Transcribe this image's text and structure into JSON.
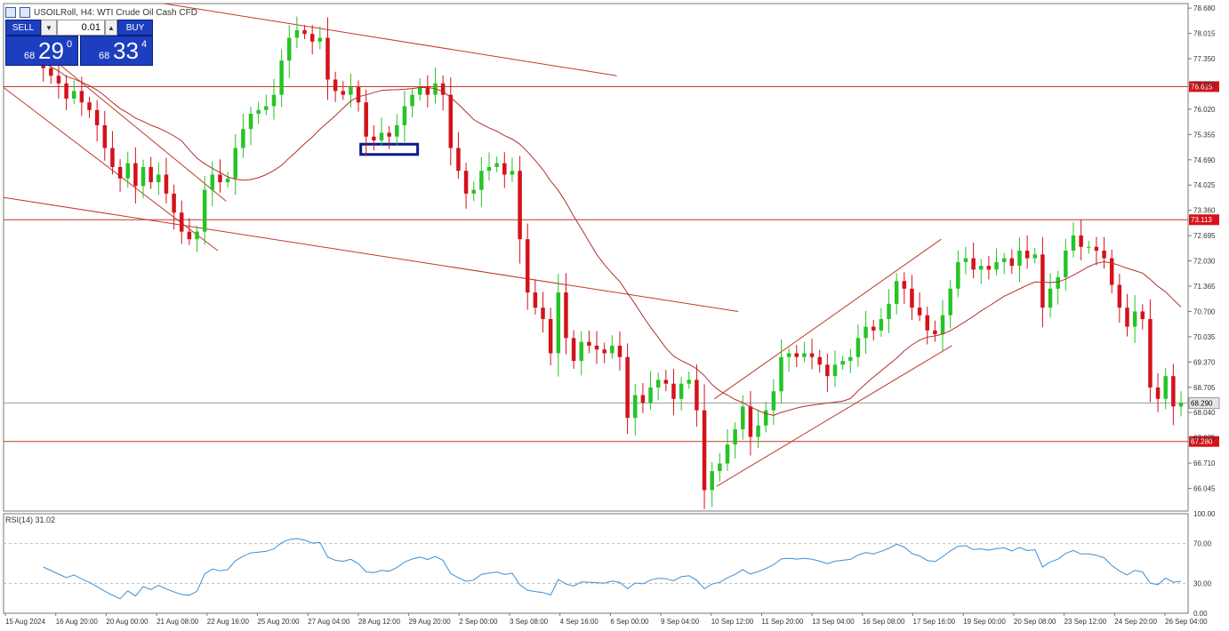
{
  "header": {
    "title": "USOILRoll, H4:  WTI Crude Oil Cash CFD"
  },
  "trade_panel": {
    "sell_label": "SELL",
    "buy_label": "BUY",
    "lot": "0.01",
    "sell_price_prefix": "68",
    "sell_price_big": "29",
    "sell_price_sup": "0",
    "buy_price_prefix": "68",
    "buy_price_big": "33",
    "buy_price_sup": "4"
  },
  "rsi_label": "RSI(14) 31.02",
  "colors": {
    "bull": "#26c426",
    "bear": "#d4121b",
    "ma": "#b3302a",
    "rsi": "#3b8fd6",
    "hline": "#c0392b",
    "current": "#a0a0a0",
    "box": "#0d1a8c"
  },
  "chart_data": {
    "type": "candlestick",
    "symbol": "USOILRoll",
    "timeframe": "H4",
    "ylim": [
      65.45,
      78.8
    ],
    "y_ticks": [
      "78.680",
      "78.015",
      "77.350",
      "76.685",
      "76.020",
      "75.355",
      "74.690",
      "74.025",
      "73.360",
      "72.695",
      "72.030",
      "71.365",
      "70.700",
      "70.035",
      "69.370",
      "68.705",
      "68.040",
      "67.375",
      "66.710",
      "66.045"
    ],
    "x_ticks": [
      "15 Aug 2024",
      "16 Aug 20:00",
      "20 Aug 00:00",
      "21 Aug 08:00",
      "22 Aug 16:00",
      "25 Aug 20:00",
      "27 Aug 04:00",
      "28 Aug 12:00",
      "29 Aug 20:00",
      "2 Sep 00:00",
      "3 Sep 08:00",
      "4 Sep 16:00",
      "6 Sep 00:00",
      "9 Sep 04:00",
      "10 Sep 12:00",
      "11 Sep 20:00",
      "13 Sep 04:00",
      "16 Sep 08:00",
      "17 Sep 16:00",
      "19 Sep 00:00",
      "20 Sep 08:00",
      "23 Sep 12:00",
      "24 Sep 20:00",
      "26 Sep 04:00"
    ],
    "levels": [
      {
        "price": 76.615,
        "label": "76.615"
      },
      {
        "price": 73.113,
        "label": "73.113"
      },
      {
        "price": 67.28,
        "label": "67.280"
      }
    ],
    "current_price": {
      "price": 68.29,
      "label": "68.290"
    },
    "closes": [
      77.4,
      77.1,
      76.9,
      76.7,
      76.3,
      76.5,
      76.2,
      76.0,
      75.6,
      75.0,
      74.5,
      74.2,
      74.6,
      74.0,
      74.5,
      74.1,
      74.3,
      73.8,
      73.3,
      72.8,
      72.6,
      72.8,
      73.9,
      74.3,
      74.1,
      74.2,
      75.0,
      75.5,
      75.9,
      76.0,
      76.1,
      76.4,
      77.3,
      77.9,
      78.1,
      78.0,
      77.8,
      77.9,
      76.8,
      76.5,
      76.4,
      76.6,
      76.2,
      75.3,
      75.2,
      75.4,
      75.3,
      75.6,
      76.1,
      76.4,
      76.6,
      76.4,
      76.7,
      76.4,
      75.0,
      74.4,
      73.8,
      73.9,
      74.4,
      74.5,
      74.6,
      74.3,
      74.4,
      72.6,
      71.2,
      70.8,
      70.5,
      69.6,
      71.2,
      70.0,
      69.4,
      69.9,
      69.8,
      69.7,
      69.6,
      69.8,
      69.5,
      67.9,
      68.5,
      68.3,
      68.7,
      68.9,
      68.8,
      68.4,
      68.8,
      68.9,
      68.1,
      66.0,
      66.5,
      66.7,
      67.2,
      67.6,
      68.2,
      67.4,
      67.7,
      68.1,
      68.6,
      69.5,
      69.6,
      69.5,
      69.6,
      69.5,
      69.3,
      69.0,
      69.3,
      69.4,
      69.5,
      70.0,
      70.3,
      70.2,
      70.5,
      70.9,
      71.5,
      71.3,
      70.8,
      70.6,
      70.2,
      70.1,
      70.6,
      71.3,
      72.0,
      72.1,
      71.8,
      71.9,
      71.8,
      72.0,
      72.1,
      71.9,
      72.3,
      72.1,
      72.2,
      70.8,
      71.3,
      71.6,
      72.3,
      72.7,
      72.4,
      72.4,
      72.3,
      72.1,
      71.4,
      70.8,
      70.3,
      70.7,
      70.5,
      68.7,
      68.4,
      69.0,
      68.2,
      68.3
    ],
    "ma_period": 20,
    "rsi": {
      "period": 14,
      "value": 31.02,
      "ylim": [
        0,
        100
      ],
      "levels": [
        70,
        30
      ],
      "y_ticks": [
        "100.00",
        "70.00",
        "30.00",
        "0.00"
      ]
    }
  }
}
